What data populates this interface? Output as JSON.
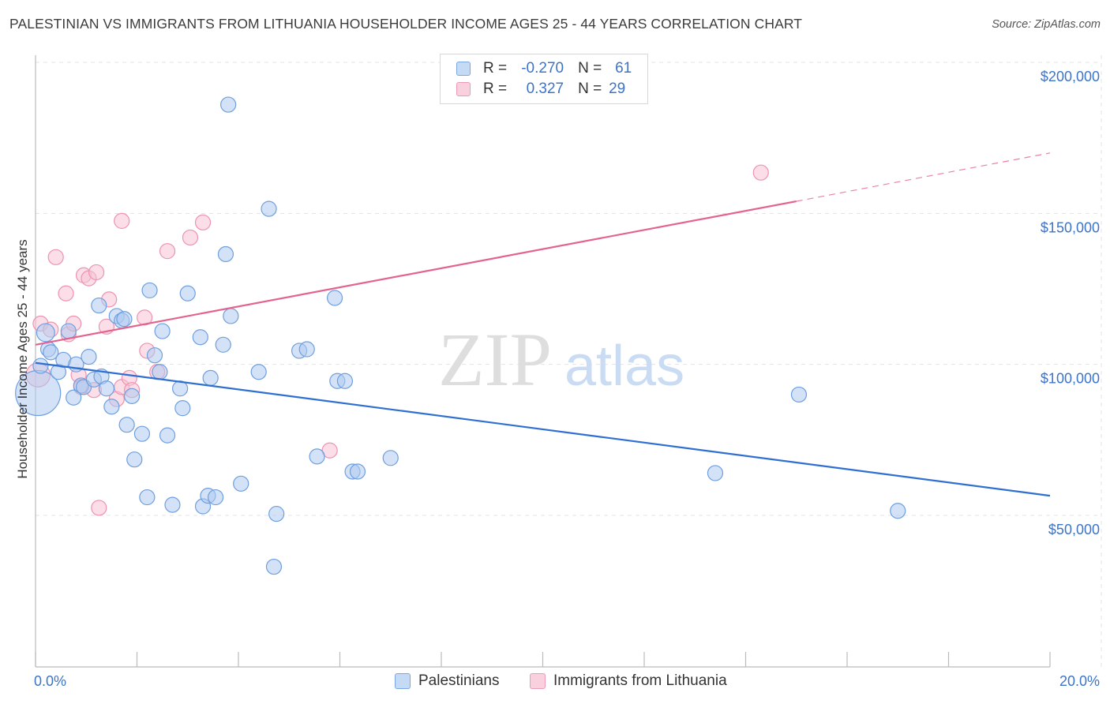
{
  "title": "PALESTINIAN VS IMMIGRANTS FROM LITHUANIA HOUSEHOLDER INCOME AGES 25 - 44 YEARS CORRELATION CHART",
  "source": "Source: ZipAtlas.com",
  "watermark": {
    "zip": "ZIP",
    "atlas": "atlas"
  },
  "legend": {
    "rows": [
      {
        "r_label": "R =",
        "r_value": "-0.270",
        "n_label": "N =",
        "n_value": "61",
        "color": "#9ec2ee"
      },
      {
        "r_label": "R =",
        "r_value": "0.327",
        "n_label": "N =",
        "n_value": "29",
        "color": "#f6b7cb"
      }
    ]
  },
  "bottom_legend": {
    "series1": "Palestinians",
    "series2": "Immigrants from Lithuania"
  },
  "colors": {
    "blue_fill": "#aecbf1",
    "blue_stroke": "#6e9fe0",
    "blue_line": "#2e6fd1",
    "pink_fill": "#f8c3d3",
    "pink_stroke": "#ee93b0",
    "pink_line": "#e4638e",
    "axis_text": "#3b74c9",
    "grid": "#e3e3e3"
  },
  "chart_data": {
    "type": "scatter",
    "title": "PALESTINIAN VS IMMIGRANTS FROM LITHUANIA HOUSEHOLDER INCOME AGES 25 - 44 YEARS CORRELATION CHART",
    "xlabel": "",
    "ylabel": "Householder Income Ages 25 - 44 years",
    "xlim": [
      0,
      20
    ],
    "ylim": [
      0,
      210000
    ],
    "x_tick_labels": [
      "0.0%",
      "20.0%"
    ],
    "y_ticks": [
      {
        "value": 50000,
        "label": "$50,000"
      },
      {
        "value": 100000,
        "label": "$100,000"
      },
      {
        "value": 150000,
        "label": "$150,000"
      },
      {
        "value": 200000,
        "label": "$200,000"
      }
    ],
    "series": [
      {
        "name": "Palestinians",
        "r": -0.27,
        "n": 61,
        "trend": {
          "x0": 0,
          "y0": 100500,
          "x1": 20,
          "y1": 56500
        },
        "points": [
          [
            0.05,
            90500,
            3
          ],
          [
            0.1,
            99500,
            1
          ],
          [
            0.2,
            110500,
            1.2
          ],
          [
            0.25,
            105000,
            1
          ],
          [
            0.3,
            104000,
            1
          ],
          [
            0.45,
            97500,
            1
          ],
          [
            0.55,
            101500,
            1
          ],
          [
            0.65,
            111000,
            1
          ],
          [
            0.75,
            89000,
            1
          ],
          [
            0.8,
            100000,
            1
          ],
          [
            0.9,
            93000,
            1
          ],
          [
            0.95,
            92500,
            1
          ],
          [
            1.05,
            102500,
            1
          ],
          [
            1.15,
            95000,
            1
          ],
          [
            1.25,
            119500,
            1
          ],
          [
            1.3,
            96000,
            1
          ],
          [
            1.4,
            92000,
            1
          ],
          [
            1.5,
            86000,
            1
          ],
          [
            1.6,
            116000,
            1
          ],
          [
            1.7,
            114500,
            1
          ],
          [
            1.75,
            115000,
            1
          ],
          [
            1.8,
            80000,
            1
          ],
          [
            1.9,
            89500,
            1
          ],
          [
            1.95,
            68500,
            1
          ],
          [
            2.1,
            77000,
            1
          ],
          [
            2.2,
            56000,
            1
          ],
          [
            2.25,
            124500,
            1
          ],
          [
            2.35,
            103000,
            1
          ],
          [
            2.45,
            97500,
            1
          ],
          [
            2.5,
            111000,
            1
          ],
          [
            2.6,
            76500,
            1
          ],
          [
            2.7,
            53500,
            1
          ],
          [
            2.85,
            92000,
            1
          ],
          [
            2.9,
            85500,
            1
          ],
          [
            3.0,
            123500,
            1
          ],
          [
            3.25,
            109000,
            1
          ],
          [
            3.3,
            53000,
            1
          ],
          [
            3.4,
            56500,
            1
          ],
          [
            3.45,
            95500,
            1
          ],
          [
            3.55,
            56000,
            1
          ],
          [
            3.7,
            106500,
            1
          ],
          [
            3.75,
            136500,
            1
          ],
          [
            3.8,
            186000,
            1
          ],
          [
            3.85,
            116000,
            1
          ],
          [
            4.05,
            60500,
            1
          ],
          [
            4.4,
            97500,
            1
          ],
          [
            4.6,
            151500,
            1
          ],
          [
            4.7,
            33000,
            1
          ],
          [
            4.75,
            50500,
            1
          ],
          [
            5.2,
            104500,
            1
          ],
          [
            5.35,
            105000,
            1
          ],
          [
            5.55,
            69500,
            1
          ],
          [
            5.9,
            122000,
            1
          ],
          [
            5.95,
            94500,
            1
          ],
          [
            6.1,
            94500,
            1
          ],
          [
            6.25,
            64500,
            1
          ],
          [
            6.35,
            64500,
            1
          ],
          [
            7.0,
            69000,
            1
          ],
          [
            13.4,
            64000,
            1
          ],
          [
            15.05,
            90000,
            1
          ],
          [
            17.0,
            51500,
            1
          ]
        ]
      },
      {
        "name": "Immigrants from Lithuania",
        "r": 0.327,
        "n": 29,
        "trend": {
          "x0": 0,
          "y0": 106500,
          "x1": 15.0,
          "y1": 154000,
          "dash_x1": 20,
          "dash_y1": 170000
        },
        "points": [
          [
            0.05,
            96500,
            1.6
          ],
          [
            0.1,
            113500,
            1
          ],
          [
            0.3,
            111500,
            1
          ],
          [
            0.4,
            135500,
            1
          ],
          [
            0.6,
            123500,
            1
          ],
          [
            0.65,
            110000,
            1
          ],
          [
            0.75,
            113500,
            1
          ],
          [
            0.85,
            96500,
            1
          ],
          [
            0.9,
            92500,
            1
          ],
          [
            0.95,
            129500,
            1
          ],
          [
            1.05,
            128500,
            1
          ],
          [
            1.15,
            91500,
            1
          ],
          [
            1.2,
            130500,
            1
          ],
          [
            1.25,
            52500,
            1
          ],
          [
            1.4,
            112500,
            1
          ],
          [
            1.45,
            121500,
            1
          ],
          [
            1.6,
            88500,
            1
          ],
          [
            1.7,
            92500,
            1
          ],
          [
            1.7,
            147500,
            1
          ],
          [
            1.85,
            95500,
            1
          ],
          [
            1.9,
            91500,
            1
          ],
          [
            2.15,
            115500,
            1
          ],
          [
            2.2,
            104500,
            1
          ],
          [
            2.4,
            97500,
            1
          ],
          [
            2.6,
            137500,
            1
          ],
          [
            3.05,
            142000,
            1
          ],
          [
            3.3,
            147000,
            1
          ],
          [
            5.8,
            71500,
            1
          ],
          [
            14.3,
            163500,
            1
          ]
        ]
      }
    ]
  }
}
